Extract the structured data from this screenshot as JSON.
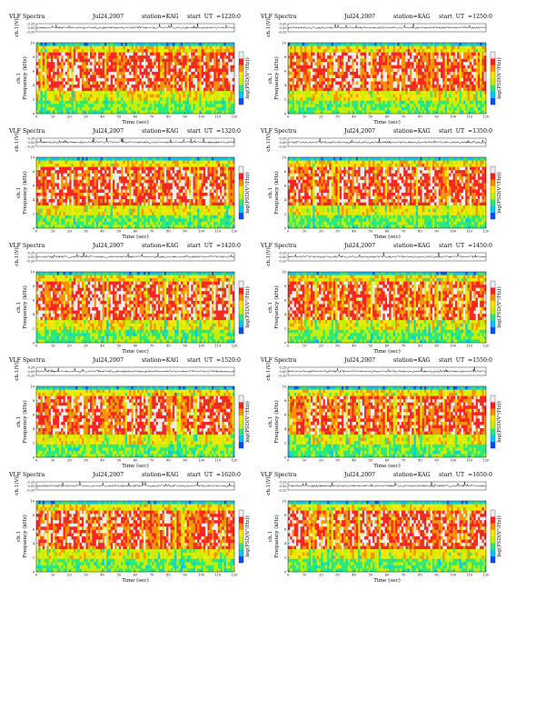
{
  "page": {
    "background": "#ffffff"
  },
  "common": {
    "title": "VLF Spectra",
    "date": "Jul24,2007",
    "station": "station=KAG",
    "time_xlabel": "Time  (sec)",
    "ch_ylabel": "ch.1(V)",
    "spec_ylabel_top": "ch.1",
    "spec_ylabel": "Frequency  (kHz)",
    "colorbar_label": "log(PSD(V²/Hz))",
    "x_ticks": [
      "0",
      "10",
      "20",
      "30",
      "40",
      "50",
      "60",
      "70",
      "80",
      "90",
      "100",
      "110",
      "120"
    ],
    "freq_ticks": [
      "0",
      "2",
      "4",
      "6",
      "8",
      "10"
    ],
    "ch_ticks": [
      "0.20",
      "0.00",
      "-0.20"
    ],
    "colormap": [
      "#00008b",
      "#0050ff",
      "#00c8ff",
      "#2ee87a",
      "#c8f000",
      "#ffe800",
      "#ff9000",
      "#ff2020",
      "#f0f0f0"
    ]
  },
  "panels": [
    {
      "date": "Jul24,2007",
      "start": "start  UT  =1220:0"
    },
    {
      "date": "Jul24,2007",
      "start": "start  UT  =1250:0"
    },
    {
      "date": "Jul24,2007",
      "start": "start  UT  =1320:0"
    },
    {
      "date": "Jul24,2007",
      "start": "start  UT  =1350:0"
    },
    {
      "date": "Jul24,2007",
      "start": "start  UT  =1420:0"
    },
    {
      "date": "Jul24,2007",
      "start": "start  UT  =1450:0"
    },
    {
      "date": "Jul24,2007",
      "start": "start  UT  =1520:0"
    },
    {
      "date": "Jul24,2007",
      "start": "start  UT  =1550:0"
    },
    {
      "date": "Jul24,2007",
      "start": "start  UT  =1620:0"
    },
    {
      "date": "Jul24,2007",
      "start": "start  UT  =1650:0"
    }
  ],
  "chart_data": {
    "type": "heatmap",
    "title": "VLF Spectra",
    "station": "KAG",
    "date": "Jul24,2007",
    "xlabel": "Time  (sec)",
    "ylabel": "Frequency  (kHz)",
    "xlim": [
      0,
      120
    ],
    "ylim": [
      0,
      10
    ],
    "waveform_ylabel": "ch.1(V)",
    "waveform_ylim": [
      -0.2,
      0.2
    ],
    "colorbar_label": "log(PSD(V²/Hz))",
    "start_times_ut": [
      "1220:0",
      "1250:0",
      "1320:0",
      "1350:0",
      "1420:0",
      "1450:0",
      "1520:0",
      "1550:0",
      "1620:0",
      "1650:0"
    ]
  }
}
